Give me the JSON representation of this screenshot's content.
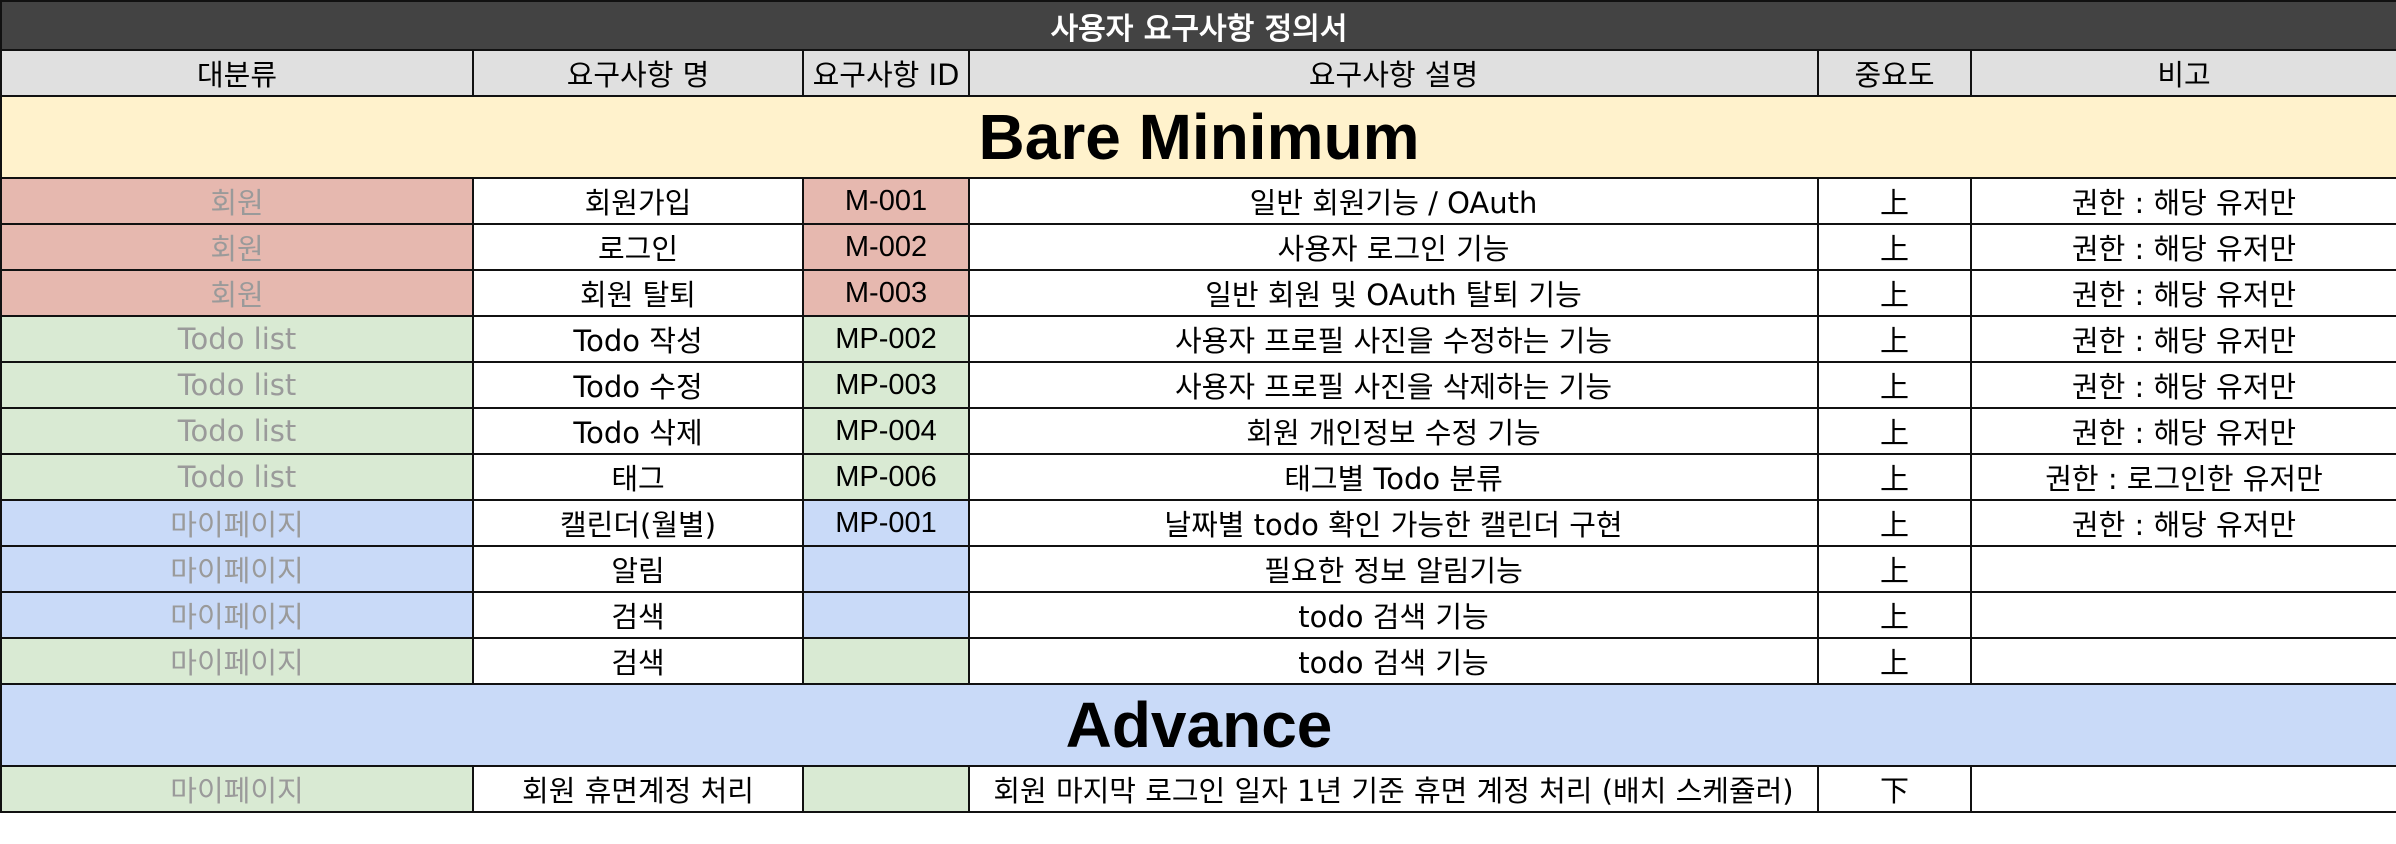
{
  "title": "사용자 요구사항 정의서",
  "headers": [
    "대분류",
    "요구사항 명",
    "요구사항 ID",
    "요구사항 설명",
    "중요도",
    "비고"
  ],
  "colors": {
    "title_bg": "#434343",
    "header_bg": "#e0e0e0",
    "bare_minimum_bg": "#fff2cc",
    "advance_bg": "#c9daf8",
    "red": "#e6b8af",
    "green": "#d9ead3",
    "blue": "#c9daf8"
  },
  "sections": [
    {
      "name": "Bare Minimum",
      "bg": "#fff2cc",
      "rows": [
        {
          "category": "회원",
          "name": "회원가입",
          "id": "M-001",
          "description": "일반 회원기능 / OAuth",
          "priority": "上",
          "note": "권한 : 해당 유저만",
          "color": "#e6b8af"
        },
        {
          "category": "회원",
          "name": "로그인",
          "id": "M-002",
          "description": "사용자 로그인 기능",
          "priority": "上",
          "note": "권한 : 해당 유저만",
          "color": "#e6b8af"
        },
        {
          "category": "회원",
          "name": "회원 탈퇴",
          "id": "M-003",
          "description": "일반 회원 및 OAuth 탈퇴 기능",
          "priority": "上",
          "note": "권한 : 해당 유저만",
          "color": "#e6b8af"
        },
        {
          "category": "Todo list",
          "name": "Todo 작성",
          "id": "MP-002",
          "description": "사용자 프로필 사진을 수정하는 기능",
          "priority": "上",
          "note": "권한 : 해당 유저만",
          "color": "#d9ead3"
        },
        {
          "category": "Todo list",
          "name": "Todo 수정",
          "id": "MP-003",
          "description": "사용자 프로필 사진을 삭제하는 기능",
          "priority": "上",
          "note": "권한 : 해당 유저만",
          "color": "#d9ead3"
        },
        {
          "category": "Todo list",
          "name": "Todo 삭제",
          "id": "MP-004",
          "description": "회원 개인정보 수정 기능",
          "priority": "上",
          "note": "권한 : 해당 유저만",
          "color": "#d9ead3"
        },
        {
          "category": "Todo list",
          "name": "태그",
          "id": "MP-006",
          "description": "태그별 Todo 분류",
          "priority": "上",
          "note": "권한 : 로그인한 유저만",
          "color": "#d9ead3"
        },
        {
          "category": "마이페이지",
          "name": "캘린더(월별)",
          "id": "MP-001",
          "description": "날짜별 todo 확인 가능한 캘린더 구현",
          "priority": "上",
          "note": "권한 : 해당 유저만",
          "color": "#c9daf8"
        },
        {
          "category": "마이페이지",
          "name": "알림",
          "id": "",
          "description": "필요한 정보 알림기능",
          "priority": "上",
          "note": "",
          "color": "#c9daf8"
        },
        {
          "category": "마이페이지",
          "name": "검색",
          "id": "",
          "description": "todo 검색 기능",
          "priority": "上",
          "note": "",
          "color": "#c9daf8"
        },
        {
          "category": "마이페이지",
          "name": "검색",
          "id": "",
          "description": "todo 검색 기능",
          "priority": "上",
          "note": "",
          "color": "#d9ead3"
        }
      ]
    },
    {
      "name": "Advance",
      "bg": "#c9daf8",
      "rows": [
        {
          "category": "마이페이지",
          "name": "회원 휴면계정 처리",
          "id": "",
          "description": "회원 마지막 로그인 일자 1년 기준 휴면 계정 처리 (배치 스케쥴러)",
          "priority": "下",
          "note": "",
          "color": "#d9ead3"
        }
      ]
    }
  ]
}
